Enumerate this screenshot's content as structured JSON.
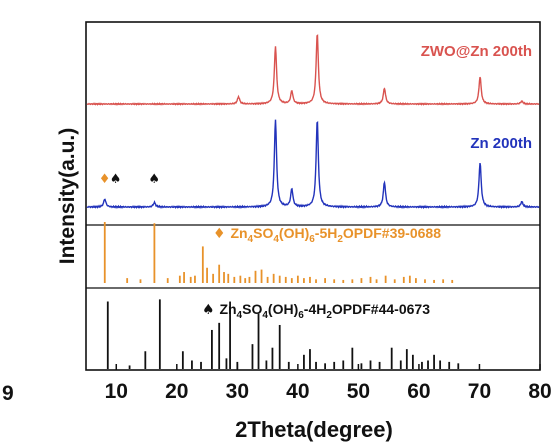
{
  "chart_data": {
    "type": "line",
    "panel_letter": "9",
    "xlabel": "2Theta(degree)",
    "ylabel": "Intensity(a.u.)",
    "xlim": [
      5,
      80
    ],
    "xticks": [
      10,
      20,
      30,
      40,
      50,
      60,
      70,
      80
    ],
    "grid": false,
    "series": [
      {
        "name": "ZWO@Zn 200th",
        "color": "#d9534f",
        "peaks": [
          {
            "x": 30.2,
            "h": 0.1
          },
          {
            "x": 36.3,
            "h": 0.8
          },
          {
            "x": 39.0,
            "h": 0.18
          },
          {
            "x": 43.2,
            "h": 0.98
          },
          {
            "x": 54.3,
            "h": 0.22
          },
          {
            "x": 70.1,
            "h": 0.38
          },
          {
            "x": 77.0,
            "h": 0.04
          }
        ]
      },
      {
        "name": "Zn 200th",
        "color": "#2233bb",
        "peaks": [
          {
            "x": 8.1,
            "h": 0.09
          },
          {
            "x": 16.3,
            "h": 0.05
          },
          {
            "x": 36.3,
            "h": 0.98
          },
          {
            "x": 39.0,
            "h": 0.2
          },
          {
            "x": 43.2,
            "h": 0.98
          },
          {
            "x": 54.3,
            "h": 0.28
          },
          {
            "x": 70.1,
            "h": 0.5
          },
          {
            "x": 77.0,
            "h": 0.06
          }
        ],
        "markers": [
          {
            "x": 8.1,
            "symbols": [
              "♦",
              "♠"
            ],
            "colors": [
              "#e8922a",
              "#111111"
            ]
          },
          {
            "x": 16.3,
            "symbols": [
              "♠"
            ],
            "colors": [
              "#111111"
            ]
          }
        ]
      }
    ],
    "references": [
      {
        "label_main": "Zn",
        "label_parts": [
          {
            "t": "Zn",
            "sub": false
          },
          {
            "t": "4",
            "sub": true
          },
          {
            "t": "SO",
            "sub": false
          },
          {
            "t": "4",
            "sub": true
          },
          {
            "t": "(OH)",
            "sub": false
          },
          {
            "t": "6",
            "sub": true
          },
          {
            "t": "-5H",
            "sub": false
          },
          {
            "t": "2",
            "sub": true
          },
          {
            "t": "OPDF#39-0688",
            "sub": false
          }
        ],
        "symbol": "♦",
        "color": "#e8922a",
        "lines": [
          {
            "x": 8.1,
            "h": 1.0
          },
          {
            "x": 11.8,
            "h": 0.08
          },
          {
            "x": 14.0,
            "h": 0.06
          },
          {
            "x": 16.3,
            "h": 0.98
          },
          {
            "x": 18.5,
            "h": 0.08
          },
          {
            "x": 20.5,
            "h": 0.12
          },
          {
            "x": 21.2,
            "h": 0.18
          },
          {
            "x": 22.3,
            "h": 0.1
          },
          {
            "x": 23.0,
            "h": 0.12
          },
          {
            "x": 24.3,
            "h": 0.6
          },
          {
            "x": 25.0,
            "h": 0.25
          },
          {
            "x": 26.0,
            "h": 0.15
          },
          {
            "x": 27.0,
            "h": 0.3
          },
          {
            "x": 27.8,
            "h": 0.18
          },
          {
            "x": 28.5,
            "h": 0.15
          },
          {
            "x": 29.5,
            "h": 0.1
          },
          {
            "x": 30.5,
            "h": 0.12
          },
          {
            "x": 31.3,
            "h": 0.08
          },
          {
            "x": 32.0,
            "h": 0.1
          },
          {
            "x": 33.0,
            "h": 0.2
          },
          {
            "x": 34.0,
            "h": 0.22
          },
          {
            "x": 35.0,
            "h": 0.1
          },
          {
            "x": 36.0,
            "h": 0.15
          },
          {
            "x": 37.0,
            "h": 0.12
          },
          {
            "x": 38.0,
            "h": 0.1
          },
          {
            "x": 39.0,
            "h": 0.08
          },
          {
            "x": 40.0,
            "h": 0.12
          },
          {
            "x": 41.0,
            "h": 0.08
          },
          {
            "x": 42.0,
            "h": 0.1
          },
          {
            "x": 43.0,
            "h": 0.06
          },
          {
            "x": 44.5,
            "h": 0.08
          },
          {
            "x": 46.0,
            "h": 0.06
          },
          {
            "x": 47.5,
            "h": 0.05
          },
          {
            "x": 49.0,
            "h": 0.06
          },
          {
            "x": 50.5,
            "h": 0.08
          },
          {
            "x": 52.0,
            "h": 0.1
          },
          {
            "x": 53.0,
            "h": 0.06
          },
          {
            "x": 54.5,
            "h": 0.12
          },
          {
            "x": 56.0,
            "h": 0.06
          },
          {
            "x": 57.5,
            "h": 0.1
          },
          {
            "x": 58.5,
            "h": 0.12
          },
          {
            "x": 59.5,
            "h": 0.08
          },
          {
            "x": 61.0,
            "h": 0.06
          },
          {
            "x": 62.5,
            "h": 0.05
          },
          {
            "x": 64.0,
            "h": 0.06
          },
          {
            "x": 65.5,
            "h": 0.05
          }
        ]
      },
      {
        "label_parts": [
          {
            "t": "Zn",
            "sub": false
          },
          {
            "t": "4",
            "sub": true
          },
          {
            "t": "SO",
            "sub": false
          },
          {
            "t": "4",
            "sub": true
          },
          {
            "t": "(OH)",
            "sub": false
          },
          {
            "t": "6",
            "sub": true
          },
          {
            "t": "-4H",
            "sub": false
          },
          {
            "t": "2",
            "sub": true
          },
          {
            "t": "OPDF#44-0673",
            "sub": false
          }
        ],
        "symbol": "♠",
        "color": "#111111",
        "lines": [
          {
            "x": 8.6,
            "h": 0.95
          },
          {
            "x": 12.2,
            "h": 0.05
          },
          {
            "x": 14.8,
            "h": 0.25
          },
          {
            "x": 17.2,
            "h": 0.98
          },
          {
            "x": 21.0,
            "h": 0.25
          },
          {
            "x": 22.5,
            "h": 0.12
          },
          {
            "x": 24.0,
            "h": 0.1
          },
          {
            "x": 25.8,
            "h": 0.55
          },
          {
            "x": 27.0,
            "h": 0.65
          },
          {
            "x": 28.2,
            "h": 0.15
          },
          {
            "x": 28.8,
            "h": 0.95
          },
          {
            "x": 30.0,
            "h": 0.1
          },
          {
            "x": 32.5,
            "h": 0.35
          },
          {
            "x": 33.5,
            "h": 0.78
          },
          {
            "x": 34.8,
            "h": 0.12
          },
          {
            "x": 35.8,
            "h": 0.3
          },
          {
            "x": 37.0,
            "h": 0.62
          },
          {
            "x": 38.5,
            "h": 0.1
          },
          {
            "x": 41.0,
            "h": 0.2
          },
          {
            "x": 42.0,
            "h": 0.28
          },
          {
            "x": 43.0,
            "h": 0.1
          },
          {
            "x": 44.5,
            "h": 0.08
          },
          {
            "x": 46.0,
            "h": 0.1
          },
          {
            "x": 47.5,
            "h": 0.12
          },
          {
            "x": 49.0,
            "h": 0.3
          },
          {
            "x": 50.5,
            "h": 0.08
          },
          {
            "x": 52.0,
            "h": 0.12
          },
          {
            "x": 53.5,
            "h": 0.1
          },
          {
            "x": 55.5,
            "h": 0.3
          },
          {
            "x": 57.0,
            "h": 0.12
          },
          {
            "x": 58.0,
            "h": 0.28
          },
          {
            "x": 59.0,
            "h": 0.2
          },
          {
            "x": 60.5,
            "h": 0.1
          },
          {
            "x": 61.5,
            "h": 0.12
          },
          {
            "x": 62.5,
            "h": 0.2
          },
          {
            "x": 63.5,
            "h": 0.12
          },
          {
            "x": 65.0,
            "h": 0.1
          },
          {
            "x": 66.5,
            "h": 0.08
          }
        ]
      }
    ]
  }
}
